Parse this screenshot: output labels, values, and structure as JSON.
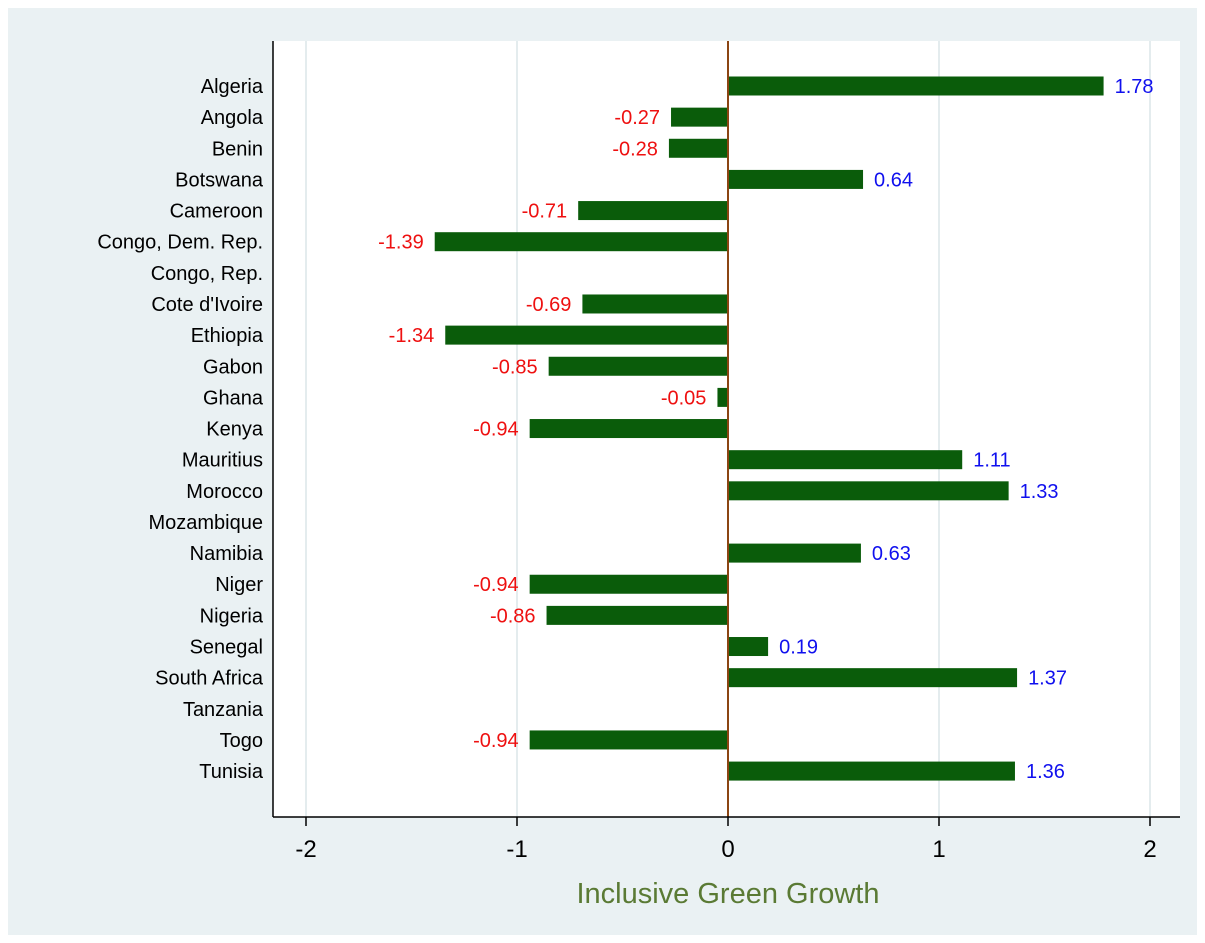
{
  "chart_data": {
    "type": "bar",
    "orientation": "horizontal",
    "categories": [
      "Algeria",
      "Angola",
      "Benin",
      "Botswana",
      "Cameroon",
      "Congo, Dem. Rep.",
      "Congo, Rep.",
      "Cote d'Ivoire",
      "Ethiopia",
      "Gabon",
      "Ghana",
      "Kenya",
      "Mauritius",
      "Morocco",
      "Mozambique",
      "Namibia",
      "Niger",
      "Nigeria",
      "Senegal",
      "South Africa",
      "Tanzania",
      "Togo",
      "Tunisia"
    ],
    "values": [
      1.78,
      -0.27,
      -0.28,
      0.64,
      -0.71,
      -1.39,
      null,
      -0.69,
      -1.34,
      -0.85,
      -0.05,
      -0.94,
      1.11,
      1.33,
      null,
      0.63,
      -0.94,
      -0.86,
      0.19,
      1.37,
      null,
      -0.94,
      1.36
    ],
    "value_labels": [
      "1.78",
      "-0.27",
      "-0.28",
      "0.64",
      "-0.71",
      "-1.39",
      "",
      "-0.69",
      "-1.34",
      "-0.85",
      "-0.05",
      "-0.94",
      "1.11",
      "1.33",
      "",
      "0.63",
      "-0.94",
      "-0.86",
      "0.19",
      "1.37",
      "",
      "-0.94",
      "1.36"
    ],
    "xlabel": "Inclusive Green Growth",
    "xlim": [
      -2,
      2
    ],
    "xticks": [
      -2,
      -1,
      0,
      1,
      2
    ],
    "xtick_labels": [
      "-2",
      "-1",
      "0",
      "1",
      "2"
    ],
    "grid": true,
    "colors": {
      "bar": "#0a5c0a",
      "positive_label": "#1010ee",
      "negative_label": "#ee1010",
      "zero_line": "#8b4513",
      "grid": "#e4ecee",
      "axis_title": "#5a7a34",
      "background": "#eaf1f3",
      "plot_background": "#ffffff"
    }
  }
}
